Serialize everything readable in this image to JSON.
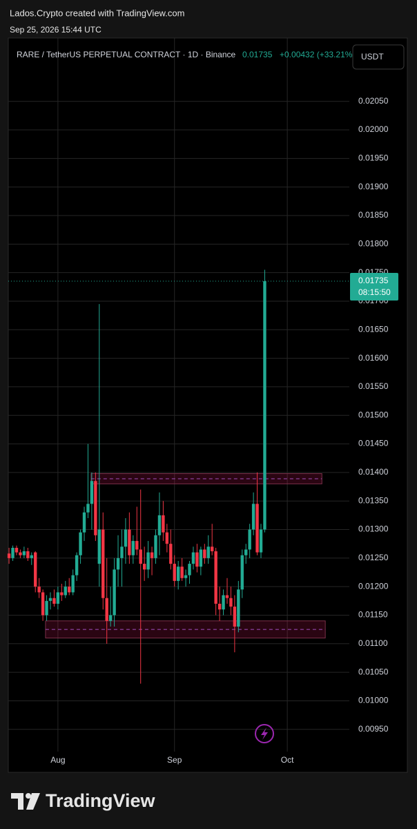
{
  "attribution": "Lados.Crypto created with TradingView.com",
  "timestamp": "Sep 25, 2026 15:44 UTC",
  "brand": "TradingView",
  "chart_data": {
    "type": "candlestick",
    "title": "RARE / TetherUS PERPETUAL CONTRACT · 1D · Binance",
    "last_price": 0.01735,
    "change": "+0.00432 (+33.21%)",
    "currency": "USDT",
    "countdown": "08:15:50",
    "up_color": "#22ab94",
    "down_color": "#f23645",
    "x": [
      0,
      1,
      2,
      3,
      4,
      5,
      6,
      7,
      8,
      9,
      10,
      11,
      12,
      13,
      14,
      15,
      16,
      17,
      18,
      19,
      20,
      21,
      22,
      23,
      24,
      25,
      26,
      27,
      28,
      29,
      30,
      31,
      32,
      33,
      34,
      35,
      36,
      37,
      38,
      39,
      40,
      41,
      42,
      43,
      44,
      45,
      46,
      47,
      48,
      49,
      50,
      51,
      52,
      53,
      54,
      55,
      56,
      57,
      58,
      59,
      60,
      61,
      62,
      63,
      64,
      65,
      66,
      67,
      68
    ],
    "open": [
      0.01258,
      0.0125,
      0.01268,
      0.0126,
      0.01255,
      0.01262,
      0.0125,
      0.0126,
      0.012,
      0.0119,
      0.0115,
      0.01175,
      0.0118,
      0.0117,
      0.0119,
      0.01185,
      0.012,
      0.0119,
      0.0122,
      0.01255,
      0.01295,
      0.0133,
      0.01345,
      0.01385,
      0.0124,
      0.013,
      0.0118,
      0.0114,
      0.0115,
      0.0123,
      0.0125,
      0.0127,
      0.013,
      0.01255,
      0.0128,
      0.01265,
      0.0124,
      0.0123,
      0.0126,
      0.0125,
      0.0129,
      0.01325,
      0.01295,
      0.01275,
      0.0124,
      0.0121,
      0.01235,
      0.01215,
      0.0122,
      0.0124,
      0.0126,
      0.01235,
      0.01265,
      0.0125,
      0.0127,
      0.01262,
      0.0117,
      0.0116,
      0.01185,
      0.0118,
      0.01165,
      0.0113,
      0.01195,
      0.01255,
      0.01265,
      0.013,
      0.01345,
      0.0126,
      0.013
    ],
    "high": [
      0.01268,
      0.01272,
      0.01272,
      0.01265,
      0.0127,
      0.01268,
      0.0126,
      0.01262,
      0.01215,
      0.01195,
      0.01185,
      0.0119,
      0.01195,
      0.012,
      0.01205,
      0.0121,
      0.01215,
      0.0123,
      0.0126,
      0.013,
      0.0134,
      0.0145,
      0.014,
      0.014,
      0.01695,
      0.0133,
      0.0125,
      0.012,
      0.0125,
      0.0129,
      0.013,
      0.0132,
      0.0133,
      0.0129,
      0.0134,
      0.0137,
      0.0127,
      0.0128,
      0.0127,
      0.013,
      0.01365,
      0.0135,
      0.0131,
      0.013,
      0.01255,
      0.01245,
      0.0125,
      0.0123,
      0.01245,
      0.0127,
      0.01275,
      0.0127,
      0.01275,
      0.0129,
      0.0131,
      0.01268,
      0.012,
      0.01195,
      0.01215,
      0.012,
      0.01185,
      0.0121,
      0.01265,
      0.01275,
      0.0131,
      0.01365,
      0.014,
      0.0131,
      0.01755
    ],
    "low": [
      0.0124,
      0.01245,
      0.01255,
      0.0125,
      0.0125,
      0.01245,
      0.01238,
      0.0119,
      0.0118,
      0.0114,
      0.0114,
      0.0116,
      0.01165,
      0.0116,
      0.01175,
      0.0118,
      0.01185,
      0.01185,
      0.0121,
      0.0124,
      0.0128,
      0.0132,
      0.013,
      0.0128,
      0.012,
      0.0116,
      0.011,
      0.0113,
      0.0113,
      0.012,
      0.012,
      0.0124,
      0.0124,
      0.0124,
      0.01255,
      0.0103,
      0.0121,
      0.01215,
      0.0122,
      0.0124,
      0.01255,
      0.0128,
      0.0126,
      0.0123,
      0.012,
      0.01195,
      0.0121,
      0.012,
      0.01205,
      0.0123,
      0.01225,
      0.0122,
      0.0124,
      0.0124,
      0.01255,
      0.0115,
      0.0114,
      0.0115,
      0.0117,
      0.0115,
      0.01085,
      0.0112,
      0.0118,
      0.0124,
      0.0125,
      0.0129,
      0.01255,
      0.0125,
      0.01295
    ],
    "close": [
      0.0125,
      0.01268,
      0.0126,
      0.01255,
      0.01262,
      0.0125,
      0.01255,
      0.012,
      0.0119,
      0.0115,
      0.01175,
      0.0118,
      0.0117,
      0.0119,
      0.01185,
      0.012,
      0.0119,
      0.0122,
      0.01255,
      0.01295,
      0.0133,
      0.01345,
      0.01385,
      0.0129,
      0.013,
      0.0118,
      0.0114,
      0.0115,
      0.0123,
      0.0125,
      0.0127,
      0.013,
      0.01255,
      0.0128,
      0.01265,
      0.0124,
      0.0123,
      0.0126,
      0.0125,
      0.0129,
      0.01325,
      0.01295,
      0.01275,
      0.0124,
      0.0121,
      0.01235,
      0.01215,
      0.0122,
      0.0124,
      0.0126,
      0.01235,
      0.01265,
      0.0125,
      0.0127,
      0.01262,
      0.0117,
      0.0116,
      0.01185,
      0.0118,
      0.01165,
      0.0113,
      0.01195,
      0.01255,
      0.01265,
      0.013,
      0.01345,
      0.0126,
      0.013,
      0.01735
    ],
    "zones": [
      {
        "high": 0.01398,
        "low": 0.0138,
        "x": [
          21.8,
          83.2
        ]
      },
      {
        "high": 0.0114,
        "low": 0.0111,
        "x": [
          9.7,
          84.1
        ]
      }
    ],
    "xlim": [
      -0.2,
      90.5
    ],
    "xticks": [
      {
        "value": 13,
        "label": "Aug"
      },
      {
        "value": 44,
        "label": "Sep"
      },
      {
        "value": 74,
        "label": "Oct"
      }
    ],
    "ylim": [
      0.00911,
      0.02161
    ],
    "yticks": [
      {
        "value": 0.0095,
        "label": "0.00950"
      },
      {
        "value": 0.01,
        "label": "0.01000"
      },
      {
        "value": 0.0105,
        "label": "0.01050"
      },
      {
        "value": 0.011,
        "label": "0.01100"
      },
      {
        "value": 0.0115,
        "label": "0.01150"
      },
      {
        "value": 0.012,
        "label": "0.01200"
      },
      {
        "value": 0.0125,
        "label": "0.01250"
      },
      {
        "value": 0.013,
        "label": "0.01300"
      },
      {
        "value": 0.0135,
        "label": "0.01350"
      },
      {
        "value": 0.014,
        "label": "0.01400"
      },
      {
        "value": 0.0145,
        "label": "0.01450"
      },
      {
        "value": 0.015,
        "label": "0.01500"
      },
      {
        "value": 0.0155,
        "label": "0.01550"
      },
      {
        "value": 0.016,
        "label": "0.01600"
      },
      {
        "value": 0.0165,
        "label": "0.01650"
      },
      {
        "value": 0.017,
        "label": "0.01700"
      },
      {
        "value": 0.0175,
        "label": "0.01750"
      },
      {
        "value": 0.018,
        "label": "0.01800"
      },
      {
        "value": 0.0185,
        "label": "0.01850"
      },
      {
        "value": 0.019,
        "label": "0.01900"
      },
      {
        "value": 0.0195,
        "label": "0.01950"
      },
      {
        "value": 0.02,
        "label": "0.02000"
      },
      {
        "value": 0.0205,
        "label": "0.02050"
      }
    ],
    "grid": true
  }
}
